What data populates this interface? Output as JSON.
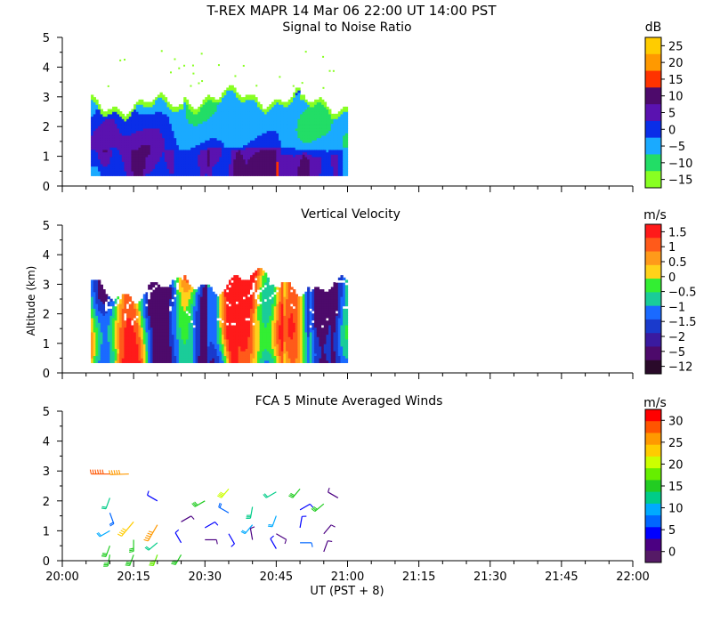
{
  "figure": {
    "title": "T-REX   MAPR 14 Mar 06   22:00 UT   14:00   PST",
    "shared_y_label": "Altitude (km)",
    "x_label": "UT  (PST + 8)",
    "x_ticks": [
      "20:00",
      "20:15",
      "20:30",
      "20:45",
      "21:00",
      "21:15",
      "21:30",
      "21:45",
      "22:00"
    ]
  },
  "chart_data": [
    {
      "type": "heatmap",
      "title": "Signal to Noise Ratio",
      "xlabel": "UT  (PST + 8)",
      "ylabel": "Altitude (km)",
      "xlim_minutes_after_2000": [
        0,
        120
      ],
      "ylim": [
        0,
        5
      ],
      "y_ticks": [
        "0",
        "1",
        "2",
        "3",
        "4",
        "5"
      ],
      "data_extent_minutes": [
        6,
        60
      ],
      "data_extent_altitude_km": [
        0.35,
        3.2
      ],
      "colorbar": {
        "unit": "dB",
        "labels": [
          "25",
          "20",
          "15",
          "10",
          "5",
          "0",
          "−5",
          "−10",
          "−15"
        ],
        "colors": [
          "#ffcc00",
          "#ff9900",
          "#ff3300",
          "#4d0a6b",
          "#5a12b0",
          "#0a2ee8",
          "#1aaaff",
          "#22dd66",
          "#88ff22"
        ]
      }
    },
    {
      "type": "heatmap",
      "title": "Vertical Velocity",
      "xlabel": "UT  (PST + 8)",
      "ylabel": "Altitude (km)",
      "xlim_minutes_after_2000": [
        0,
        120
      ],
      "ylim": [
        0,
        5
      ],
      "y_ticks": [
        "0",
        "1",
        "2",
        "3",
        "4",
        "5"
      ],
      "data_extent_minutes": [
        6,
        60
      ],
      "data_extent_altitude_km": [
        0.35,
        3.4
      ],
      "colorbar": {
        "unit": "m/s",
        "labels": [
          "1.5",
          "1",
          "0.5",
          "0",
          "−0.5",
          "−1",
          "−1.5",
          "−2",
          "−5",
          "−12"
        ],
        "colors": [
          "#ff1a1a",
          "#ff5a1a",
          "#ff9a1a",
          "#ffd21a",
          "#33ee33",
          "#1acc99",
          "#1a6aff",
          "#1a3acc",
          "#3a1aa0",
          "#4d0a6b",
          "#2a0a2a"
        ]
      }
    },
    {
      "type": "scatter",
      "title": "FCA 5 Minute Averaged Winds",
      "xlabel": "UT  (PST + 8)",
      "ylabel": "Altitude (km)",
      "xlim_minutes_after_2000": [
        0,
        120
      ],
      "ylim": [
        0,
        5
      ],
      "y_ticks": [
        "0",
        "1",
        "2",
        "3",
        "4",
        "5"
      ],
      "colorbar": {
        "unit": "m/s",
        "labels": [
          "30",
          "25",
          "20",
          "15",
          "10",
          "5",
          "0"
        ],
        "colors": [
          "#ff0000",
          "#ff5500",
          "#ff9900",
          "#ffcc00",
          "#ccff00",
          "#66ee00",
          "#22cc22",
          "#00cc88",
          "#00aaff",
          "#0066ff",
          "#0000ff",
          "#4b0082",
          "#551a66"
        ]
      },
      "wind_barbs": {
        "unit_note": "time minutes after 20:00, altitude km, speed m/s, direction deg",
        "points": [
          [
            10,
            2.9,
            28,
            270
          ],
          [
            14,
            2.9,
            26,
            268
          ],
          [
            10,
            2.1,
            12,
            200
          ],
          [
            10,
            1.6,
            8,
            160
          ],
          [
            10,
            1.0,
            10,
            240
          ],
          [
            10,
            0.5,
            14,
            200
          ],
          [
            10,
            0.2,
            16,
            190
          ],
          [
            15,
            1.3,
            22,
            220
          ],
          [
            15,
            0.7,
            14,
            180
          ],
          [
            15,
            0.2,
            16,
            200
          ],
          [
            20,
            2.0,
            4,
            300
          ],
          [
            20,
            1.2,
            24,
            210
          ],
          [
            20,
            0.6,
            12,
            230
          ],
          [
            20,
            0.2,
            18,
            200
          ],
          [
            25,
            1.3,
            3,
            60
          ],
          [
            25,
            0.6,
            4,
            330
          ],
          [
            25,
            0.2,
            14,
            210
          ],
          [
            30,
            2.0,
            14,
            240
          ],
          [
            30,
            1.1,
            6,
            60
          ],
          [
            30,
            0.7,
            3,
            90
          ],
          [
            35,
            2.4,
            20,
            220
          ],
          [
            35,
            1.6,
            8,
            300
          ],
          [
            35,
            0.9,
            4,
            150
          ],
          [
            40,
            1.8,
            13,
            190
          ],
          [
            40,
            1.2,
            10,
            220
          ],
          [
            40,
            0.7,
            3,
            350
          ],
          [
            45,
            2.3,
            12,
            240
          ],
          [
            45,
            1.5,
            10,
            200
          ],
          [
            45,
            0.9,
            3,
            120
          ],
          [
            45,
            0.4,
            4,
            330
          ],
          [
            50,
            2.4,
            14,
            220
          ],
          [
            50,
            1.7,
            4,
            60
          ],
          [
            50,
            1.1,
            4,
            10
          ],
          [
            50,
            0.6,
            7,
            90
          ],
          [
            55,
            1.9,
            14,
            230
          ],
          [
            55,
            0.9,
            3,
            40
          ],
          [
            55,
            0.3,
            3,
            20
          ],
          [
            58,
            2.1,
            3,
            300
          ]
        ]
      }
    }
  ]
}
